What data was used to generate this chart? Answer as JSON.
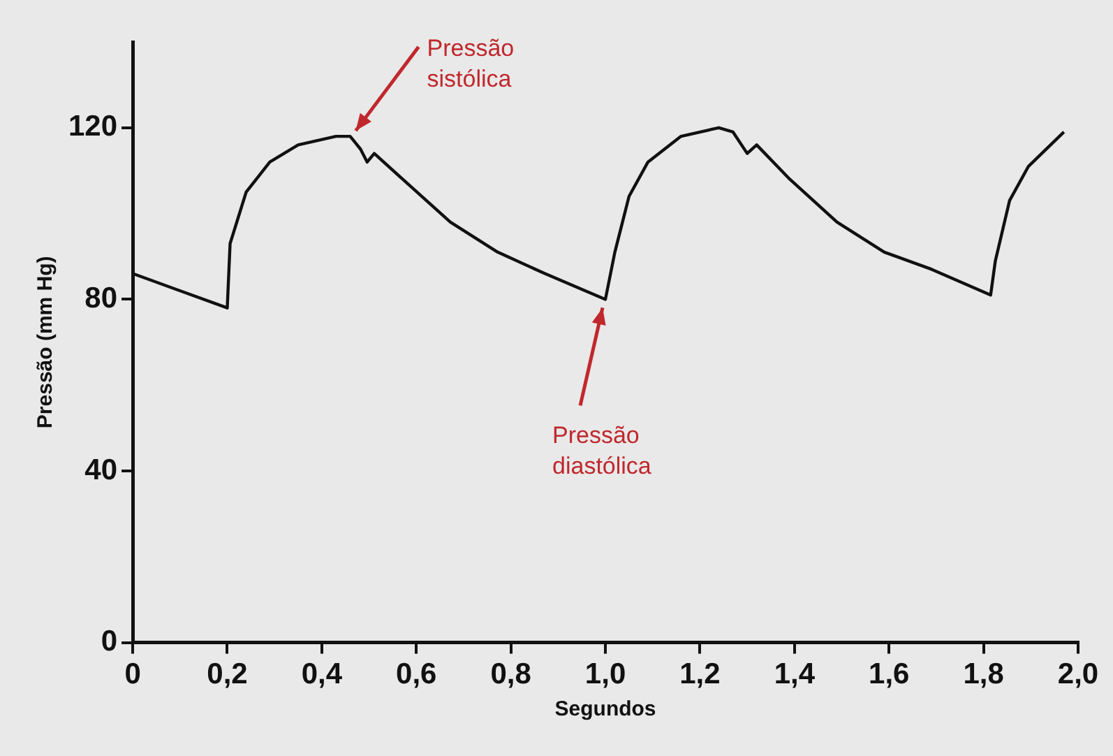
{
  "chart_data": {
    "type": "line",
    "xlabel": "Segundos",
    "ylabel": "Pressão (mm Hg)",
    "xlim": [
      0,
      2
    ],
    "xticks": [
      {
        "value": 0,
        "label": "0"
      },
      {
        "value": 0.2,
        "label": "0,2"
      },
      {
        "value": 0.4,
        "label": "0,4"
      },
      {
        "value": 0.6,
        "label": "0,6"
      },
      {
        "value": 0.8,
        "label": "0,8"
      },
      {
        "value": 1,
        "label": "1,0"
      },
      {
        "value": 1.2,
        "label": "1,2"
      },
      {
        "value": 1.4,
        "label": "1,4"
      },
      {
        "value": 1.6,
        "label": "1,6"
      },
      {
        "value": 1.8,
        "label": "1,8"
      },
      {
        "value": 2,
        "label": "2,0"
      }
    ],
    "ylim": [
      0,
      140
    ],
    "yticks": [
      0,
      40,
      80,
      120
    ],
    "grid": false,
    "legend": false,
    "marker": "none",
    "line_style": "solid",
    "x": [
      0,
      0.2,
      0.206,
      0.24,
      0.29,
      0.35,
      0.43,
      0.46,
      0.482,
      0.496,
      0.511,
      0.571,
      0.672,
      0.772,
      0.872,
      1.0,
      1.02,
      1.05,
      1.09,
      1.16,
      1.24,
      1.27,
      1.3,
      1.32,
      1.39,
      1.49,
      1.59,
      1.69,
      1.815,
      1.825,
      1.855,
      1.895,
      1.97
    ],
    "series": [
      {
        "color": "#111111",
        "values": [
          86,
          78,
          93,
          105,
          112,
          116,
          118,
          118,
          115,
          112,
          114,
          108,
          98,
          91,
          86,
          80,
          91,
          104,
          112,
          118,
          120,
          119,
          114,
          116,
          108,
          98,
          91,
          87,
          81,
          89,
          103,
          111,
          119
        ]
      }
    ],
    "annotations": [
      {
        "text": "Pressão\nsistólica",
        "x": 0.46,
        "y": 118
      },
      {
        "text": "Pressão\ndiastólica",
        "x": 1.0,
        "y": 80
      }
    ]
  }
}
